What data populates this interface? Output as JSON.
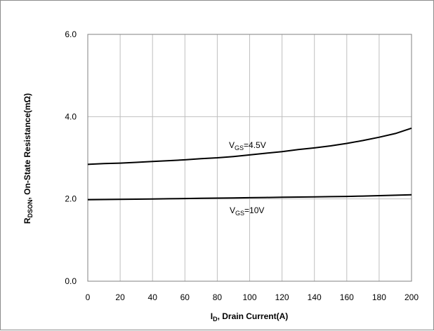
{
  "chart_data": {
    "type": "line",
    "xlabel": {
      "main": "I",
      "sub": "D",
      "rest": ", Drain Current(A)"
    },
    "ylabel": {
      "main": "R",
      "sub": "DSON",
      "rest": ", On-State Resistance(mΩ)"
    },
    "xlim": [
      0,
      200
    ],
    "ylim": [
      0,
      6
    ],
    "x_ticks": [
      0,
      20,
      40,
      60,
      80,
      100,
      120,
      140,
      160,
      180,
      200
    ],
    "y_ticks": [
      0,
      2,
      4,
      6
    ],
    "y_tick_labels": [
      "0.0",
      "2.0",
      "4.0",
      "6.0"
    ],
    "grid": true,
    "x": [
      0,
      10,
      20,
      30,
      40,
      50,
      60,
      70,
      80,
      90,
      100,
      110,
      120,
      130,
      140,
      150,
      160,
      170,
      180,
      190,
      200
    ],
    "series": [
      {
        "label": {
          "main": "V",
          "sub": "GS",
          "rest": "=4.5V"
        },
        "values": [
          2.84,
          2.86,
          2.87,
          2.89,
          2.91,
          2.93,
          2.95,
          2.98,
          3.0,
          3.03,
          3.07,
          3.11,
          3.15,
          3.2,
          3.24,
          3.29,
          3.35,
          3.42,
          3.5,
          3.59,
          3.72
        ]
      },
      {
        "label": {
          "main": "V",
          "sub": "GS",
          "rest": "=10V"
        },
        "values": [
          1.98,
          1.985,
          1.99,
          1.995,
          2.0,
          2.005,
          2.01,
          2.015,
          2.02,
          2.025,
          2.03,
          2.035,
          2.04,
          2.045,
          2.05,
          2.055,
          2.06,
          2.07,
          2.08,
          2.09,
          2.1
        ]
      }
    ]
  }
}
